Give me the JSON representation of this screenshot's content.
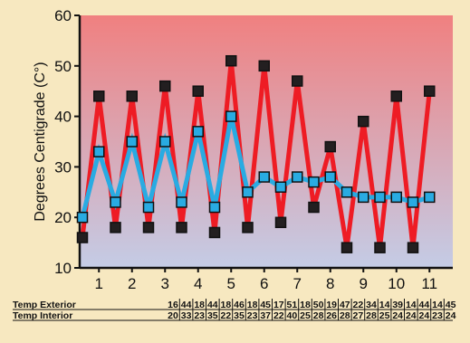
{
  "chart_data": {
    "type": "line",
    "ylabel": "Degrees Centigrade (C°)",
    "xlabel": "",
    "ylim": [
      10,
      60
    ],
    "yticks": [
      10,
      20,
      30,
      40,
      50,
      60
    ],
    "x": [
      0.5,
      1,
      1.5,
      2,
      2.5,
      3,
      3.5,
      4,
      4.5,
      5,
      5.5,
      6,
      6.5,
      7,
      7.5,
      8,
      8.5,
      9,
      9.5,
      10,
      10.5,
      11
    ],
    "xticks": [
      1,
      2,
      3,
      4,
      5,
      6,
      7,
      8,
      9,
      10,
      11
    ],
    "series": [
      {
        "name": "Temp Exterior",
        "values": [
          16,
          44,
          18,
          44,
          18,
          46,
          18,
          45,
          17,
          51,
          18,
          50,
          19,
          47,
          22,
          34,
          14,
          39,
          14,
          44,
          14,
          45
        ],
        "color": "#ee1c24",
        "marker_color": "#231f20"
      },
      {
        "name": "Temp Interior",
        "values": [
          20,
          33,
          23,
          35,
          22,
          35,
          23,
          37,
          22,
          40,
          25,
          28,
          26,
          28,
          27,
          28,
          25,
          24,
          24,
          24,
          23,
          24
        ],
        "color": "#29abe2",
        "marker_color": "#29abe2"
      }
    ],
    "table": {
      "rows": [
        {
          "label": "Temp Exterior",
          "values": [
            "16",
            "44",
            "18",
            "44",
            "18",
            "46",
            "18",
            "45",
            "17",
            "51",
            "18",
            "50",
            "19",
            "47",
            "22",
            "34",
            "14",
            "39",
            "14",
            "44",
            "14",
            "45"
          ]
        },
        {
          "label": "Temp Interior",
          "values": [
            "20",
            "33",
            "23",
            "35",
            "22",
            "35",
            "23",
            "37",
            "22",
            "40",
            "25",
            "28",
            "26",
            "28",
            "27",
            "28",
            "25",
            "24",
            "24",
            "24",
            "23",
            "24"
          ]
        }
      ]
    },
    "background": {
      "top_color": "#f08080",
      "bottom_color": "#c4cce6"
    },
    "grid": false,
    "legend": "none"
  }
}
